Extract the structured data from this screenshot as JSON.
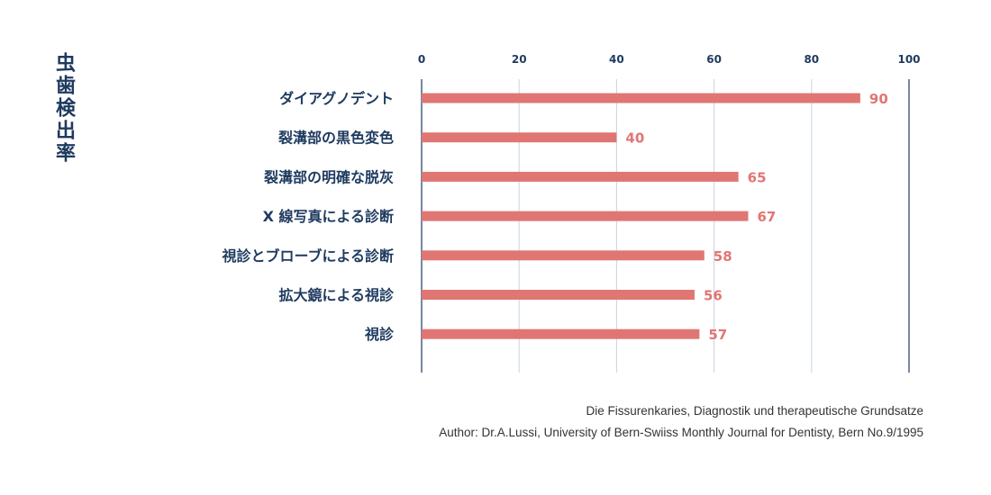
{
  "chart_data": {
    "type": "bar",
    "orientation": "horizontal",
    "ylabel": "虫歯検出率",
    "xlim": [
      0,
      100
    ],
    "xticks": [
      0,
      20,
      40,
      60,
      80,
      100
    ],
    "grid": true,
    "categories": [
      "ダイアグノデント",
      "裂溝部の黒色変色",
      "裂溝部の明確な脱灰",
      "X 線写真による診断",
      "視診とブローブによる診断",
      "拡大鏡による視診",
      "視診"
    ],
    "values": [
      90,
      40,
      65,
      67,
      58,
      56,
      57
    ]
  },
  "source": {
    "line1": "Die Fissurenkaries, Diagnostik und therapeutische Grundsatze",
    "line2": "Author: Dr.A.Lussi, University of Bern-Swiiss Monthly Journal for Dentisty, Bern No.9/1995"
  },
  "colors": {
    "bar": "#e07674",
    "text": "#1e3a5f",
    "grid": "#c8d4e0",
    "axis": "#1e3a5f"
  }
}
